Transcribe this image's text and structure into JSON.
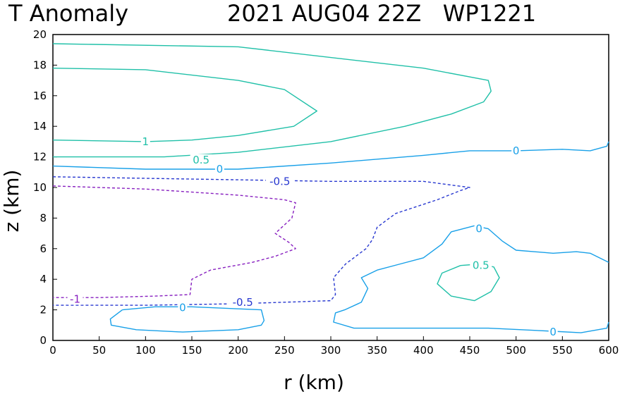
{
  "chart_data": {
    "type": "contour",
    "title_left": "T Anomaly",
    "title_right": "2021 AUG04 22Z   WP1221",
    "xlabel": "r (km)",
    "ylabel": "z (km)",
    "xlim": [
      0,
      600
    ],
    "ylim": [
      0,
      20
    ],
    "xticks": [
      0,
      50,
      100,
      150,
      200,
      250,
      300,
      350,
      400,
      450,
      500,
      550,
      600
    ],
    "yticks": [
      0,
      2,
      4,
      6,
      8,
      10,
      12,
      14,
      16,
      18,
      20
    ],
    "colors": {
      "c1": "#20c0a8",
      "c0_5": "#20c0a8",
      "c0": "#18a0e8",
      "cm0_5": "#2838d0",
      "cm1": "#8820c0"
    },
    "contours": [
      {
        "level": "1",
        "color_key": "c1",
        "dashed": false,
        "label": "1",
        "label_at": [
          100,
          13.0
        ],
        "points": [
          [
            0,
            17.8
          ],
          [
            100,
            17.7
          ],
          [
            200,
            17.0
          ],
          [
            250,
            16.4
          ],
          [
            285,
            15.0
          ],
          [
            260,
            14.0
          ],
          [
            200,
            13.4
          ],
          [
            150,
            13.1
          ],
          [
            100,
            13.0
          ],
          [
            0,
            13.1
          ]
        ]
      },
      {
        "level": "0.5",
        "color_key": "c0_5",
        "dashed": false,
        "label": "",
        "label_at": null,
        "points": [
          [
            0,
            19.4
          ],
          [
            200,
            19.2
          ],
          [
            400,
            17.8
          ],
          [
            470,
            17.0
          ],
          [
            473,
            16.3
          ],
          [
            465,
            15.6
          ],
          [
            430,
            14.8
          ],
          [
            380,
            14.0
          ],
          [
            300,
            13.0
          ],
          [
            200,
            12.3
          ],
          [
            120,
            12.0
          ],
          [
            0,
            12.0
          ]
        ]
      },
      {
        "level": "0.5",
        "color_key": "c0_5",
        "dashed": false,
        "label": "0.5",
        "label_at": [
          160,
          11.8
        ],
        "points": []
      },
      {
        "level": "0.5",
        "color_key": "c0_5",
        "dashed": false,
        "label": "0.5",
        "label_at": [
          462,
          4.9
        ],
        "points": [
          [
            440,
            4.9
          ],
          [
            462,
            5.0
          ],
          [
            476,
            4.8
          ],
          [
            482,
            4.1
          ],
          [
            473,
            3.2
          ],
          [
            455,
            2.6
          ],
          [
            430,
            2.9
          ],
          [
            415,
            3.7
          ],
          [
            420,
            4.4
          ],
          [
            440,
            4.9
          ]
        ]
      },
      {
        "level": "0",
        "color_key": "c0",
        "dashed": false,
        "label": "0",
        "label_at": [
          500,
          12.4
        ],
        "points": [
          [
            0,
            11.4
          ],
          [
            100,
            11.2
          ],
          [
            200,
            11.2
          ],
          [
            300,
            11.6
          ],
          [
            400,
            12.1
          ],
          [
            450,
            12.4
          ],
          [
            500,
            12.4
          ],
          [
            550,
            12.5
          ],
          [
            580,
            12.4
          ],
          [
            598,
            12.7
          ],
          [
            600,
            13.0
          ]
        ]
      },
      {
        "level": "0",
        "color_key": "c0",
        "dashed": false,
        "label": "0",
        "label_at": [
          180,
          11.2
        ],
        "points": []
      },
      {
        "level": "0",
        "color_key": "c0",
        "dashed": false,
        "label": "0",
        "label_at": [
          140,
          2.15
        ],
        "points": [
          [
            75,
            2.0
          ],
          [
            110,
            2.2
          ],
          [
            150,
            2.2
          ],
          [
            225,
            2.0
          ],
          [
            228,
            1.3
          ],
          [
            225,
            1.0
          ],
          [
            200,
            0.7
          ],
          [
            140,
            0.55
          ],
          [
            90,
            0.7
          ],
          [
            63,
            1.0
          ],
          [
            62,
            1.4
          ],
          [
            75,
            2.0
          ]
        ]
      },
      {
        "level": "0",
        "color_key": "c0",
        "dashed": false,
        "label": "0",
        "label_at": [
          460,
          7.3
        ],
        "points": [
          [
            600,
            5.1
          ],
          [
            580,
            5.7
          ],
          [
            565,
            5.8
          ],
          [
            540,
            5.7
          ],
          [
            500,
            5.9
          ],
          [
            485,
            6.5
          ],
          [
            470,
            7.3
          ],
          [
            455,
            7.5
          ],
          [
            430,
            7.1
          ],
          [
            420,
            6.3
          ],
          [
            400,
            5.4
          ],
          [
            375,
            5.0
          ],
          [
            350,
            4.6
          ],
          [
            333,
            4.1
          ],
          [
            340,
            3.4
          ],
          [
            333,
            2.5
          ],
          [
            315,
            2.0
          ],
          [
            305,
            1.8
          ],
          [
            303,
            1.2
          ],
          [
            325,
            0.8
          ],
          [
            400,
            0.8
          ],
          [
            470,
            0.8
          ],
          [
            540,
            0.6
          ],
          [
            570,
            0.5
          ],
          [
            598,
            0.8
          ],
          [
            600,
            1.2
          ]
        ]
      },
      {
        "level": "0",
        "color_key": "c0",
        "dashed": false,
        "label": "0",
        "label_at": [
          540,
          0.55
        ],
        "points": []
      },
      {
        "level": "-0.5",
        "color_key": "cm0_5",
        "dashed": true,
        "label": "-0.5",
        "label_at": [
          245,
          10.4
        ],
        "points": [
          [
            0,
            10.7
          ],
          [
            100,
            10.6
          ],
          [
            200,
            10.5
          ],
          [
            300,
            10.4
          ],
          [
            400,
            10.4
          ],
          [
            450,
            10.0
          ],
          [
            440,
            9.8
          ],
          [
            415,
            9.2
          ],
          [
            370,
            8.3
          ],
          [
            350,
            7.4
          ],
          [
            345,
            6.6
          ],
          [
            338,
            6.0
          ],
          [
            316,
            5.0
          ],
          [
            303,
            4.1
          ],
          [
            305,
            3.0
          ],
          [
            300,
            2.6
          ],
          [
            250,
            2.5
          ],
          [
            200,
            2.4
          ],
          [
            100,
            2.3
          ],
          [
            0,
            2.3
          ]
        ]
      },
      {
        "level": "-0.5",
        "color_key": "cm0_5",
        "dashed": true,
        "label": "-0.5",
        "label_at": [
          205,
          2.5
        ],
        "points": []
      },
      {
        "level": "-1",
        "color_key": "cm1",
        "dashed": true,
        "label": "-1",
        "label_at": [
          24,
          2.7
        ],
        "points": [
          [
            0,
            10.1
          ],
          [
            100,
            9.9
          ],
          [
            200,
            9.5
          ],
          [
            250,
            9.2
          ],
          [
            262,
            9.0
          ],
          [
            258,
            8.0
          ],
          [
            240,
            7.0
          ],
          [
            255,
            6.4
          ],
          [
            262,
            6.0
          ],
          [
            240,
            5.5
          ],
          [
            215,
            5.1
          ],
          [
            170,
            4.6
          ],
          [
            150,
            4.0
          ],
          [
            148,
            3.0
          ],
          [
            110,
            2.9
          ],
          [
            50,
            2.8
          ],
          [
            0,
            2.8
          ]
        ]
      }
    ]
  }
}
